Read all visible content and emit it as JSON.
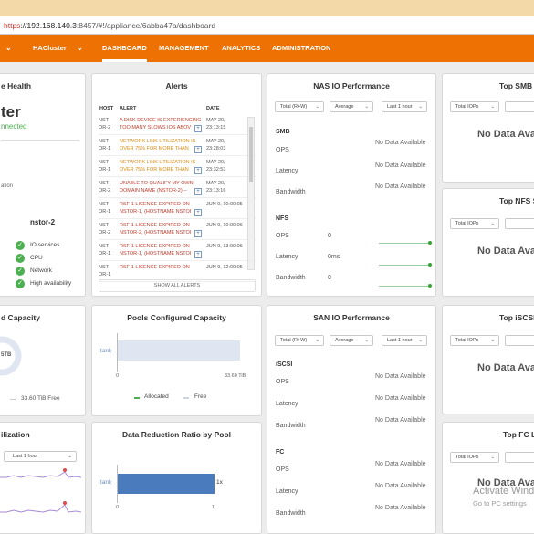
{
  "browser": {
    "url_protocol": "https",
    "url_host": "://192.168.140.3",
    "url_rest": ":8457/#!/appliance/6abba47a/dashboard"
  },
  "nav": {
    "cluster": "HACluster",
    "items": [
      "DASHBOARD",
      "MANAGEMENT",
      "ANALYTICS",
      "ADMINISTRATION"
    ],
    "active": "DASHBOARD"
  },
  "health": {
    "title_fragment": "e Health",
    "cluster_fragment": "ter",
    "status_fragment": "nnected",
    "side_fragment": "ation",
    "node": "nstor-2",
    "checks": [
      "IO services",
      "CPU",
      "Network",
      "High availability"
    ]
  },
  "alerts": {
    "title": "Alerts",
    "headers": [
      "HOST",
      "ALERT",
      "DATE"
    ],
    "rows": [
      {
        "host": "NST\nOR-2",
        "alert": "A DISK DEVICE IS EXPERIENCING TOO MANY SLOWS IOS ABOV",
        "date": "MAY 20,\n23:13:15",
        "sev": "red"
      },
      {
        "host": "NST\nOR-1",
        "alert": "NETWORK LINK UTILIZATION IS OVER 75% FOR MORE THAN",
        "date": "MAY 20,\n23:28:03",
        "sev": "orange"
      },
      {
        "host": "NST\nOR-1",
        "alert": "NETWORK LINK UTILIZATION IS OVER 75% FOR MORE THAN",
        "date": "MAY 20,\n23:32:53",
        "sev": "orange"
      },
      {
        "host": "NST\nOR-2",
        "alert": "UNABLE TO QUALIFY MY OWN DOMAIN NAME (NSTOR-2) --",
        "date": "MAY 20,\n23:13:16",
        "sev": "red"
      },
      {
        "host": "NST\nOR-1",
        "alert": "RSF-1 LICENCE EXPIRED ON NSTOR-1, (HOSTNAME NSTOI",
        "date": "JUN 9, 10:00:05",
        "sev": "red"
      },
      {
        "host": "NST\nOR-2",
        "alert": "RSF-1 LICENCE EXPIRED ON NSTOR-2, (HOSTNAME NSTOI",
        "date": "JUN 9, 10:00:06",
        "sev": "red"
      },
      {
        "host": "NST\nOR-1",
        "alert": "RSF-1 LICENCE EXPIRED ON NSTOR-1, (HOSTNAME NSTOI",
        "date": "JUN 9, 13:00:06",
        "sev": "red"
      },
      {
        "host": "NST\nOR-1",
        "alert": "RSF-1 LICENCE EXPIRED ON",
        "date": "JUN 9, 12:00:05",
        "sev": "red"
      }
    ],
    "show_all": "SHOW ALL ALERTS"
  },
  "nas": {
    "title": "NAS IO Performance",
    "selects": [
      "Total (R+W)",
      "Average",
      "Last 1 hour"
    ],
    "smb_label": "SMB",
    "nfs_label": "NFS",
    "metrics": [
      "OPS",
      "Latency",
      "Bandwidth"
    ],
    "nodata": "No Data Available",
    "nfs_values": [
      "0",
      "0ms",
      "0"
    ]
  },
  "san": {
    "title": "SAN IO Performance",
    "selects": [
      "Total (R+W)",
      "Average",
      "Last 1 hour"
    ],
    "iscsi_label": "iSCSI",
    "fc_label": "FC",
    "metrics": [
      "OPS",
      "Latency",
      "Bandwidth"
    ],
    "nodata": "No Data Available"
  },
  "right": {
    "smb_title": "Top SMB S",
    "nfs_title": "Top NFS S",
    "iscsi_title": "Top iSCSI",
    "fc_title": "Top FC L",
    "select": "Total IOPs",
    "nodata": "No Data Ava"
  },
  "capacity": {
    "title_fragment": "d Capacity",
    "donut_text": "5TB",
    "free_label": "33.60 TiB Free"
  },
  "pools": {
    "title": "Pools Configured Capacity",
    "pool": "tank",
    "axis_min": "0",
    "axis_max": "33.60 TiB",
    "legend": [
      "Allocated",
      "Free"
    ],
    "allocated_color": "#4caf50",
    "free_color": "#dfe6f2"
  },
  "util": {
    "title_fragment": "ilization",
    "select": "Last 1 hour"
  },
  "ddr": {
    "title": "Data Reduction Ratio by Pool",
    "pool": "tank",
    "value_label": "1x",
    "axis_min": "0",
    "axis_max": "1",
    "bar_color": "#4a7bbd"
  },
  "watermark": {
    "line1": "Activate Wind",
    "line2": "Go to PC settings"
  },
  "colors": {
    "accent": "#ee7203",
    "ok": "#4caf50"
  }
}
